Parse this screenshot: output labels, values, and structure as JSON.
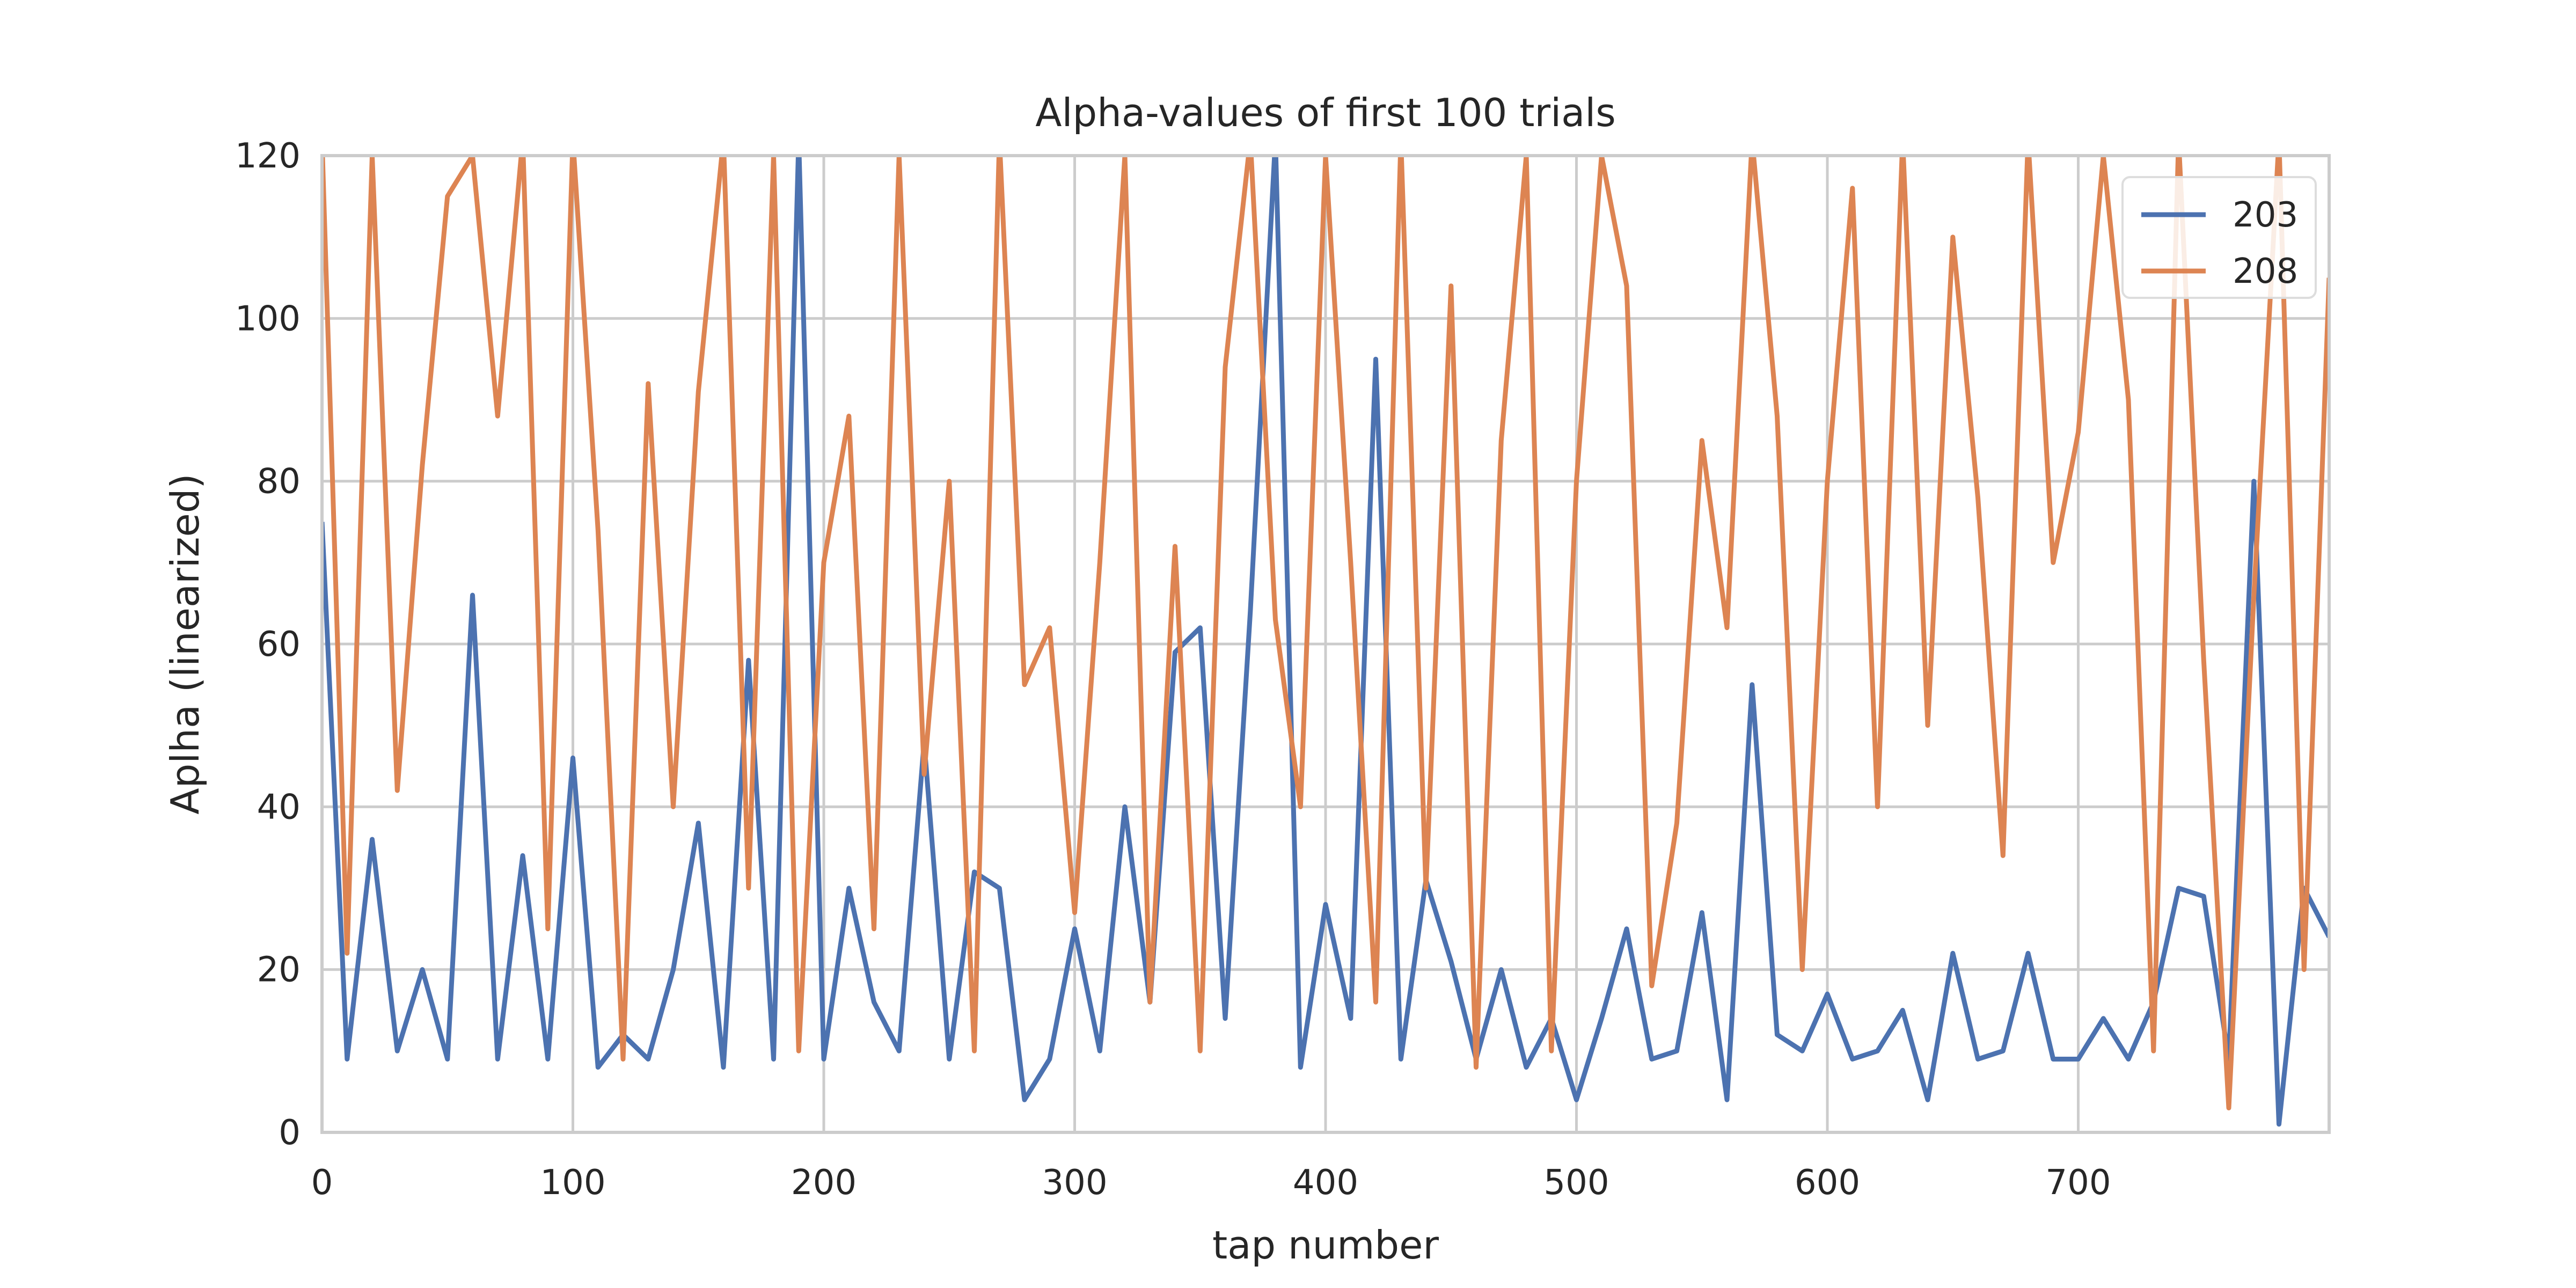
{
  "chart_data": {
    "type": "line",
    "title": "Alpha-values of first 100 trials",
    "xlabel": "tap number",
    "ylabel": "Aplha (linearized)",
    "xlim": [
      0,
      800
    ],
    "ylim": [
      0,
      120
    ],
    "xticks": [
      0,
      100,
      200,
      300,
      400,
      500,
      600,
      700
    ],
    "yticks": [
      0,
      20,
      40,
      60,
      80,
      100,
      120
    ],
    "grid": true,
    "legend_position": "top-right",
    "clipped_at_top": true,
    "series": [
      {
        "name": "203",
        "color": "#4c72b0",
        "x": [
          0,
          10,
          20,
          30,
          40,
          50,
          60,
          70,
          80,
          90,
          100,
          110,
          120,
          130,
          140,
          150,
          160,
          170,
          180,
          190,
          200,
          210,
          220,
          230,
          240,
          250,
          260,
          270,
          280,
          290,
          300,
          310,
          320,
          330,
          340,
          350,
          360,
          370,
          380,
          390,
          400,
          410,
          420,
          430,
          440,
          450,
          460,
          470,
          480,
          490,
          500,
          510,
          520,
          530,
          540,
          550,
          560,
          570,
          580,
          590,
          600,
          610,
          620,
          630,
          640,
          650,
          660,
          670,
          680,
          690,
          700,
          710,
          720,
          730,
          740,
          750,
          760,
          770,
          780,
          790,
          800
        ],
        "y": [
          75,
          9,
          36,
          10,
          20,
          9,
          66,
          9,
          34,
          9,
          46,
          8,
          12,
          9,
          20,
          38,
          8,
          58,
          9,
          122,
          9,
          30,
          16,
          10,
          48,
          9,
          32,
          30,
          4,
          9,
          25,
          10,
          40,
          16,
          59,
          62,
          14,
          64,
          122,
          8,
          28,
          14,
          95,
          9,
          31,
          21,
          9,
          20,
          8,
          14,
          4,
          14,
          25,
          9,
          10,
          27,
          4,
          55,
          12,
          10,
          17,
          9,
          10,
          15,
          4,
          22,
          9,
          10,
          22,
          9,
          9,
          14,
          9,
          16,
          30,
          29,
          9,
          80,
          1,
          30,
          24
        ]
      },
      {
        "name": "208",
        "color": "#dd8452",
        "x": [
          0,
          10,
          20,
          30,
          40,
          50,
          60,
          70,
          80,
          90,
          100,
          110,
          120,
          130,
          140,
          150,
          160,
          170,
          180,
          190,
          200,
          210,
          220,
          230,
          240,
          250,
          260,
          270,
          280,
          290,
          300,
          310,
          320,
          330,
          340,
          350,
          360,
          370,
          380,
          390,
          400,
          410,
          420,
          430,
          440,
          450,
          460,
          470,
          480,
          490,
          500,
          510,
          520,
          530,
          540,
          550,
          560,
          570,
          580,
          590,
          600,
          610,
          620,
          630,
          640,
          650,
          660,
          670,
          680,
          690,
          700,
          710,
          720,
          730,
          740,
          750,
          760,
          770,
          780,
          790,
          800
        ],
        "y": [
          122,
          22,
          120,
          42,
          82,
          115,
          120,
          88,
          122,
          25,
          122,
          74,
          9,
          92,
          40,
          91,
          122,
          30,
          120,
          10,
          70,
          88,
          25,
          120,
          44,
          80,
          10,
          122,
          55,
          62,
          27,
          70,
          120,
          16,
          72,
          10,
          94,
          122,
          63,
          40,
          120,
          70,
          16,
          122,
          30,
          104,
          8,
          85,
          120,
          10,
          80,
          120,
          104,
          18,
          38,
          85,
          62,
          122,
          88,
          20,
          80,
          116,
          40,
          122,
          50,
          110,
          78,
          34,
          122,
          70,
          86,
          120,
          90,
          10,
          122,
          58,
          3,
          66,
          122,
          20,
          105
        ]
      }
    ]
  }
}
